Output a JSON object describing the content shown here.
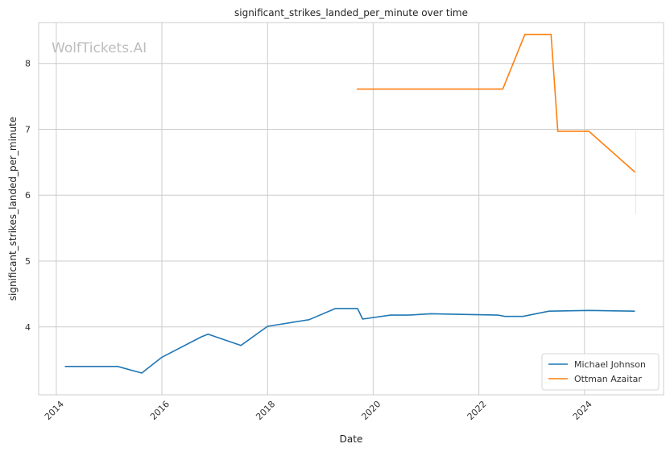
{
  "chart_data": {
    "type": "line",
    "title": "significant_strikes_landed_per_minute over time",
    "xlabel": "Date",
    "ylabel": "significant_strikes_landed_per_minute",
    "watermark": "WolfTickets.AI",
    "xlim": [
      "2013-09-01",
      "2025-07-01"
    ],
    "ylim": [
      2.97,
      8.62
    ],
    "x_ticks": [
      "2014",
      "2016",
      "2018",
      "2020",
      "2022",
      "2024"
    ],
    "y_ticks": [
      4,
      5,
      6,
      7,
      8
    ],
    "grid": true,
    "legend_position": "lower right",
    "series": [
      {
        "name": "Michael Johnson",
        "color": "#1f77b4",
        "points": [
          [
            "2014-03-01",
            3.4
          ],
          [
            "2015-03-01",
            3.4
          ],
          [
            "2015-08-15",
            3.3
          ],
          [
            "2016-01-01",
            3.54
          ],
          [
            "2016-10-01",
            3.85
          ],
          [
            "2016-11-15",
            3.89
          ],
          [
            "2017-07-01",
            3.72
          ],
          [
            "2018-01-01",
            4.01
          ],
          [
            "2018-10-15",
            4.11
          ],
          [
            "2019-04-15",
            4.28
          ],
          [
            "2019-09-15",
            4.28
          ],
          [
            "2019-10-20",
            4.12
          ],
          [
            "2020-05-01",
            4.18
          ],
          [
            "2020-09-01",
            4.18
          ],
          [
            "2021-02-01",
            4.2
          ],
          [
            "2022-05-15",
            4.18
          ],
          [
            "2022-07-01",
            4.16
          ],
          [
            "2022-11-01",
            4.16
          ],
          [
            "2023-05-01",
            4.24
          ],
          [
            "2024-02-01",
            4.25
          ],
          [
            "2024-12-15",
            4.24
          ]
        ]
      },
      {
        "name": "Ottman Azaitar",
        "color": "#ff7f0e",
        "points": [
          [
            "2019-09-10",
            7.61
          ],
          [
            "2022-06-15",
            7.61
          ],
          [
            "2022-11-15",
            8.44
          ],
          [
            "2023-05-15",
            8.44
          ],
          [
            "2023-07-01",
            6.97
          ],
          [
            "2024-02-01",
            6.97
          ],
          [
            "2024-12-15",
            6.35
          ]
        ],
        "band": {
          "x": "2024-12-20",
          "low": 5.71,
          "high": 6.97
        }
      }
    ]
  }
}
